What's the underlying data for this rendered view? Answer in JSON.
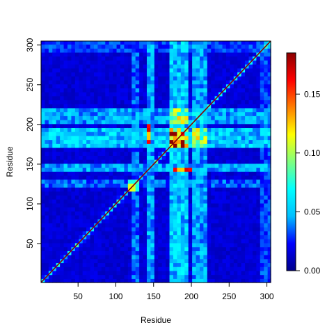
{
  "chart_data": {
    "type": "heatmap",
    "title": "",
    "xlabel": "Residue",
    "ylabel": "Residue",
    "xlim": [
      1,
      305
    ],
    "ylim": [
      1,
      305
    ],
    "x_ticks": [
      50,
      100,
      150,
      200,
      250,
      300
    ],
    "y_ticks": [
      50,
      100,
      150,
      200,
      250,
      300
    ],
    "colorbar": {
      "min": 0.0,
      "max": 0.185,
      "ticks": [
        0.0,
        0.05,
        0.1,
        0.15
      ],
      "tick_labels": [
        "0.00",
        "0.05",
        "0.10",
        "0.15"
      ],
      "colors": [
        "#00008b",
        "#0000ff",
        "#00bfff",
        "#00ffff",
        "#7fff7f",
        "#ffff00",
        "#ff7f00",
        "#ff0000",
        "#8b0000"
      ]
    },
    "symmetric": true,
    "diagonal_value": 0.185,
    "background_value": 0.015,
    "band_regions": [
      {
        "from": 120,
        "to": 130,
        "value": 0.045
      },
      {
        "from": 140,
        "to": 150,
        "value": 0.06
      },
      {
        "from": 170,
        "to": 195,
        "value": 0.07
      },
      {
        "from": 203,
        "to": 223,
        "value": 0.06
      },
      {
        "from": 290,
        "to": 305,
        "value": 0.04
      }
    ],
    "block_regions": [
      {
        "x": [
          170,
          195
        ],
        "y": [
          170,
          195
        ],
        "value": 0.11
      },
      {
        "x": [
          173,
          190
        ],
        "y": [
          173,
          190
        ],
        "value": 0.15
      },
      {
        "x": [
          170,
          195
        ],
        "y": [
          203,
          223
        ],
        "value": 0.095
      },
      {
        "x": [
          203,
          223
        ],
        "y": [
          170,
          195
        ],
        "value": 0.095
      },
      {
        "x": [
          175,
          200
        ],
        "y": [
          143,
          147
        ],
        "value": 0.13
      },
      {
        "x": [
          143,
          147
        ],
        "y": [
          175,
          200
        ],
        "value": 0.13
      },
      {
        "x": [
          118,
          133
        ],
        "y": [
          118,
          133
        ],
        "value": 0.09
      }
    ]
  }
}
